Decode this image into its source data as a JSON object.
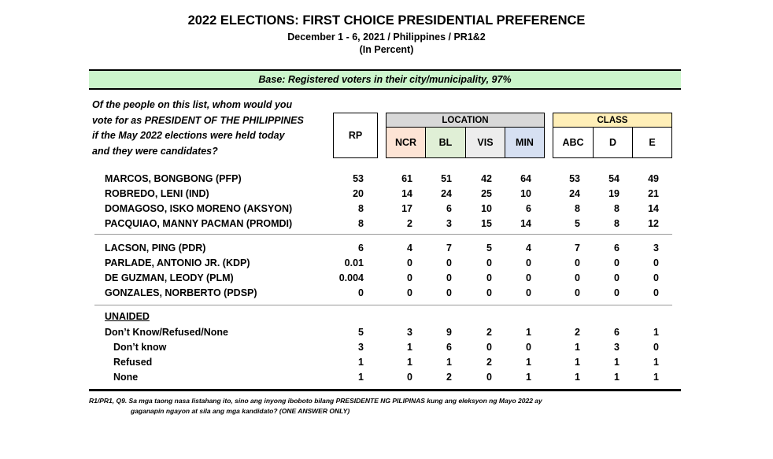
{
  "header": {
    "title": "2022 ELECTIONS: FIRST CHOICE PRESIDENTIAL PREFERENCE",
    "subtitle": "December 1 - 6, 2021 / Philippines / PR1&2",
    "unit": "(In Percent)"
  },
  "base": "Base: Registered voters in their city/municipality, 97%",
  "question": [
    "Of the people on this list, whom would you",
    "vote for as PRESIDENT OF THE PHILIPPINES",
    "if the May 2022 elections were held today",
    "and they were candidates?"
  ],
  "columns": {
    "rp": "RP",
    "location_group": "LOCATION",
    "class_group": "CLASS",
    "location": [
      "NCR",
      "BL",
      "VIS",
      "MIN"
    ],
    "class": [
      "ABC",
      "D",
      "E"
    ]
  },
  "colors": {
    "base_bar": "#ccf5cc",
    "location_header": "#d8d8d8",
    "class_header": "#ffefb8",
    "ncr": "#fde4d5",
    "bl": "#e0efd6",
    "vis": "#ededed",
    "min": "#d6e0f2"
  },
  "rows": [
    {
      "label": "MARCOS, BONGBONG (PFP)",
      "values": [
        "53",
        "61",
        "51",
        "42",
        "64",
        "53",
        "54",
        "49"
      ]
    },
    {
      "label": "ROBREDO, LENI (IND)",
      "values": [
        "20",
        "14",
        "24",
        "25",
        "10",
        "24",
        "19",
        "21"
      ]
    },
    {
      "label": "DOMAGOSO, ISKO MORENO (AKSYON)",
      "values": [
        "8",
        "17",
        "6",
        "10",
        "6",
        "8",
        "8",
        "14"
      ]
    },
    {
      "label": "PACQUIAO, MANNY PACMAN (PROMDI)",
      "values": [
        "8",
        "2",
        "3",
        "15",
        "14",
        "5",
        "8",
        "12"
      ]
    },
    {
      "label": "LACSON, PING (PDR)",
      "values": [
        "6",
        "4",
        "7",
        "5",
        "4",
        "7",
        "6",
        "3"
      ]
    },
    {
      "label": "PARLADE, ANTONIO JR. (KDP)",
      "values": [
        "0.01",
        "0",
        "0",
        "0",
        "0",
        "0",
        "0",
        "0"
      ]
    },
    {
      "label": "DE GUZMAN, LEODY (PLM)",
      "values": [
        "0.004",
        "0",
        "0",
        "0",
        "0",
        "0",
        "0",
        "0"
      ]
    },
    {
      "label": "GONZALES, NORBERTO (PDSP)",
      "values": [
        "0",
        "0",
        "0",
        "0",
        "0",
        "0",
        "0",
        "0"
      ]
    },
    {
      "label": "UNAIDED",
      "values": []
    },
    {
      "label": "Don’t Know/Refused/None",
      "values": [
        "5",
        "3",
        "9",
        "2",
        "1",
        "2",
        "6",
        "1"
      ]
    },
    {
      "label": "Don’t know",
      "values": [
        "3",
        "1",
        "6",
        "0",
        "0",
        "1",
        "3",
        "0"
      ]
    },
    {
      "label": "Refused",
      "values": [
        "1",
        "1",
        "1",
        "2",
        "1",
        "1",
        "1",
        "1"
      ]
    },
    {
      "label": "None",
      "values": [
        "1",
        "0",
        "2",
        "0",
        "1",
        "1",
        "1",
        "1"
      ]
    }
  ],
  "footnote": [
    "R1/PR1, Q9. Sa mga taong nasa listahang ito, sino ang inyong iboboto bilang  PRESIDENTE NG PILIPINAS kung ang eleksyon ng Mayo 2022 ay",
    "gaganapin ngayon at sila ang mga kandidato? (ONE ANSWER ONLY)"
  ]
}
